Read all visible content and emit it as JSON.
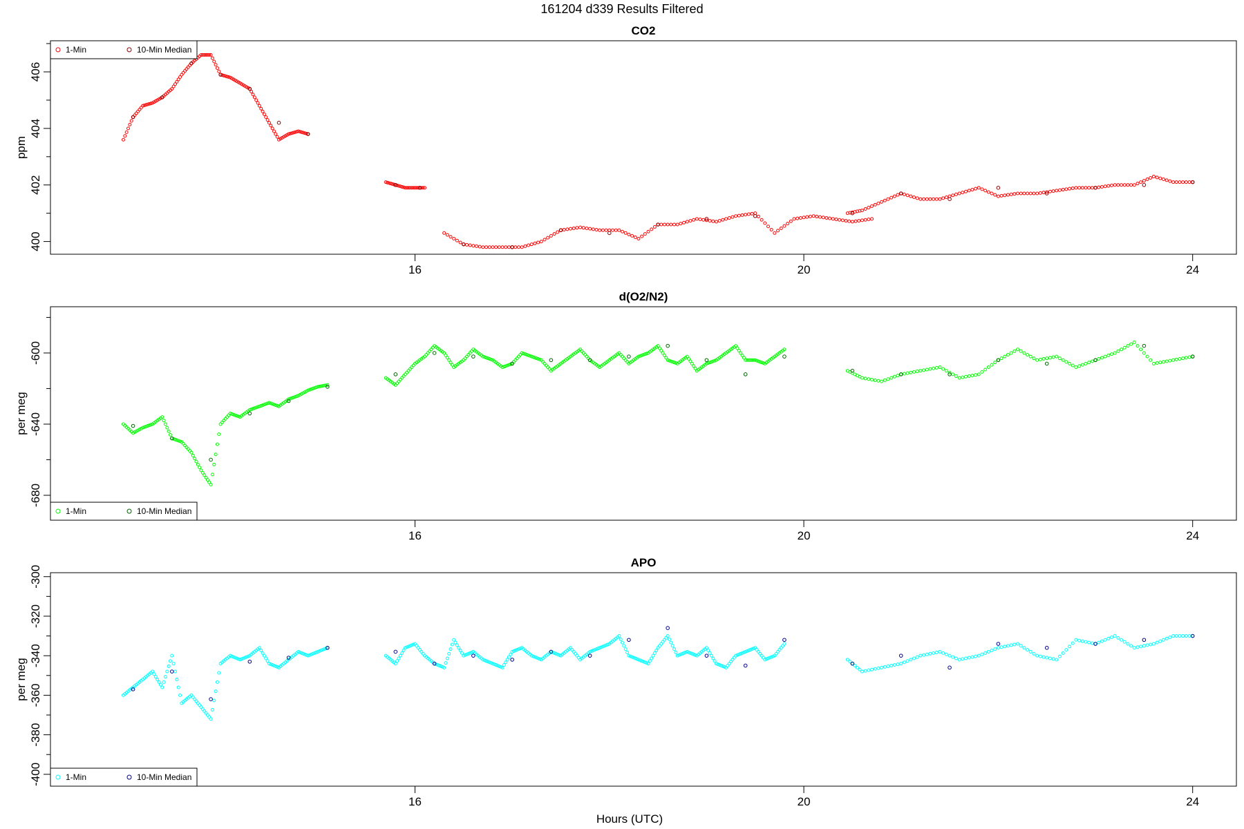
{
  "figure": {
    "title": "161204   d339   Results Filtered",
    "xlabel": "Hours (UTC)"
  },
  "legend": {
    "series1": "1-Min",
    "series2": "10-Min Median"
  },
  "chart_data": [
    {
      "type": "scatter",
      "title": "CO2",
      "xlabel": "",
      "ylabel": "ppm",
      "xlim": [
        12.25,
        24.45
      ],
      "ylim": [
        399.55,
        407.1
      ],
      "xticks": [
        16,
        20,
        24
      ],
      "yticks": [
        400,
        402,
        404,
        406
      ],
      "legend_position": "top-left",
      "colors": {
        "one_min": "#ff0000",
        "median": "#8b0000"
      },
      "series": [
        {
          "name": "1-Min",
          "segments": [
            {
              "x": [
                13.0,
                13.1,
                13.2,
                13.3,
                13.4,
                13.5,
                13.6,
                13.7,
                13.8,
                13.9,
                14.0,
                14.1,
                14.2,
                14.3,
                14.4,
                14.5,
                14.6,
                14.7,
                14.8,
                14.9,
                15.0,
                15.1,
                15.2
              ],
              "y": [
                403.6,
                404.4,
                404.8,
                404.9,
                405.1,
                405.4,
                405.9,
                406.3,
                406.6,
                406.6,
                405.9,
                405.8,
                405.6,
                405.4,
                404.8,
                404.2,
                403.6,
                403.8,
                403.9,
                403.8,
                null,
                null,
                null
              ]
            },
            {
              "x": [
                15.7,
                15.8,
                15.9,
                16.0,
                16.1
              ],
              "y": [
                402.1,
                402.0,
                401.9,
                401.9,
                401.9
              ]
            },
            {
              "x": [
                16.3,
                16.5,
                16.7,
                16.9,
                17.1,
                17.3,
                17.5,
                17.7,
                17.9,
                18.1,
                18.3,
                18.5,
                18.7,
                18.9,
                19.1,
                19.3,
                19.5,
                19.7,
                19.9,
                20.1,
                20.3,
                20.5,
                20.7,
                20.9,
                21.1,
                21.3
              ],
              "y": [
                400.3,
                399.9,
                399.8,
                399.8,
                399.8,
                400.0,
                400.4,
                400.5,
                400.4,
                400.4,
                400.1,
                400.6,
                400.6,
                400.8,
                400.7,
                400.9,
                401.0,
                400.3,
                400.8,
                400.9,
                400.8,
                400.7,
                400.8,
                null,
                null,
                null
              ]
            },
            {
              "x": [
                20.45,
                20.6,
                20.8,
                21.0,
                21.2,
                21.4,
                21.6,
                21.8,
                22.0,
                22.2,
                22.4,
                22.6,
                22.8,
                23.0,
                23.2,
                23.4,
                23.6,
                23.8,
                24.0
              ],
              "y": [
                401.0,
                401.1,
                401.4,
                401.7,
                401.5,
                401.5,
                401.7,
                401.9,
                401.6,
                401.7,
                401.7,
                401.8,
                401.9,
                401.9,
                402.0,
                402.0,
                402.3,
                402.1,
                402.1
              ]
            }
          ]
        },
        {
          "name": "10-Min Median",
          "segments": [
            {
              "x": [
                13.1,
                13.4,
                13.7,
                14.0,
                14.3,
                14.6,
                14.9
              ],
              "y": [
                404.4,
                405.1,
                406.3,
                405.9,
                405.4,
                404.2,
                403.8
              ]
            },
            {
              "x": [
                15.8,
                16.05
              ],
              "y": [
                402.0,
                401.9
              ]
            },
            {
              "x": [
                16.5,
                17.0,
                17.5,
                18.0,
                18.5,
                19.0,
                19.5
              ],
              "y": [
                399.9,
                399.8,
                400.4,
                400.3,
                400.6,
                400.8,
                400.9
              ]
            },
            {
              "x": [
                20.5,
                21.0,
                21.5,
                22.0,
                22.5,
                23.0,
                23.5,
                24.0
              ],
              "y": [
                401.0,
                401.7,
                401.5,
                401.9,
                401.7,
                401.9,
                402.0,
                402.1
              ]
            }
          ]
        }
      ]
    },
    {
      "type": "scatter",
      "title": "d(O2/N2)",
      "xlabel": "",
      "ylabel": "per meg",
      "xlim": [
        12.25,
        24.45
      ],
      "ylim": [
        -694,
        -574
      ],
      "xticks": [
        16,
        20,
        24
      ],
      "yticks": [
        -680,
        -640,
        -600
      ],
      "legend_position": "bottom-left",
      "colors": {
        "one_min": "#00ff00",
        "median": "#006400"
      },
      "series": [
        {
          "name": "1-Min",
          "segments": [
            {
              "x": [
                13.0,
                13.1,
                13.2,
                13.3,
                13.4,
                13.5,
                13.6,
                13.7,
                13.8,
                13.9,
                14.0,
                14.1,
                14.2,
                14.3,
                14.4,
                14.5,
                14.6,
                14.7,
                14.8,
                14.9,
                15.0,
                15.1
              ],
              "y": [
                -640,
                -645,
                -642,
                -640,
                -636,
                -648,
                -650,
                -656,
                -666,
                -674,
                -640,
                -634,
                -636,
                -632,
                -630,
                -628,
                -630,
                -626,
                -624,
                -621,
                -619,
                -618
              ]
            },
            {
              "x": [
                15.7,
                15.8,
                15.9,
                16.0,
                16.1,
                16.2,
                16.3,
                16.4,
                16.5,
                16.6,
                16.7,
                16.8,
                16.9,
                17.0,
                17.1,
                17.2,
                17.3,
                17.4,
                17.5,
                17.6,
                17.7,
                17.8,
                17.9,
                18.0,
                18.1,
                18.2,
                18.3,
                18.4,
                18.5,
                18.6,
                18.7,
                18.8,
                18.9,
                19.0,
                19.1,
                19.2,
                19.3,
                19.4,
                19.5,
                19.6,
                19.7,
                19.8
              ],
              "y": [
                -614,
                -618,
                -612,
                -606,
                -602,
                -596,
                -600,
                -608,
                -604,
                -598,
                -602,
                -604,
                -608,
                -606,
                -600,
                -602,
                -604,
                -610,
                -606,
                -602,
                -598,
                -604,
                -608,
                -604,
                -600,
                -606,
                -602,
                -600,
                -596,
                -604,
                -606,
                -602,
                -610,
                -606,
                -604,
                -600,
                -596,
                -604,
                -604,
                -606,
                -602,
                -598
              ]
            },
            {
              "x": [
                20.45,
                20.6,
                20.8,
                21.0,
                21.2,
                21.4,
                21.6,
                21.8,
                22.0,
                22.2,
                22.4,
                22.6,
                22.8,
                23.0,
                23.2,
                23.4,
                23.6,
                23.8,
                24.0
              ],
              "y": [
                -610,
                -614,
                -616,
                -612,
                -610,
                -608,
                -614,
                -612,
                -604,
                -598,
                -604,
                -602,
                -608,
                -604,
                -600,
                -594,
                -606,
                -604,
                -602
              ]
            }
          ]
        },
        {
          "name": "10-Min Median",
          "segments": [
            {
              "x": [
                13.1,
                13.5,
                13.9,
                14.3,
                14.7,
                15.1
              ],
              "y": [
                -641,
                -648,
                -660,
                -634,
                -627,
                -619
              ]
            },
            {
              "x": [
                15.8,
                16.2,
                16.6,
                17.0,
                17.4,
                17.8,
                18.2,
                18.6,
                19.0,
                19.4,
                19.8
              ],
              "y": [
                -612,
                -600,
                -602,
                -606,
                -604,
                -604,
                -602,
                -596,
                -604,
                -612,
                -602
              ]
            },
            {
              "x": [
                20.5,
                21.0,
                21.5,
                22.0,
                22.5,
                23.0,
                23.5,
                24.0
              ],
              "y": [
                -610,
                -612,
                -612,
                -604,
                -606,
                -604,
                -596,
                -602
              ]
            }
          ]
        }
      ]
    },
    {
      "type": "scatter",
      "title": "APO",
      "xlabel": "Hours (UTC)",
      "ylabel": "per meg",
      "xlim": [
        12.25,
        24.45
      ],
      "ylim": [
        -406,
        -298
      ],
      "xticks": [
        16,
        20,
        24
      ],
      "yticks": [
        -400,
        -380,
        -360,
        -340,
        -320,
        -300
      ],
      "legend_position": "bottom-left",
      "colors": {
        "one_min": "#00ffff",
        "median": "#00008b"
      },
      "series": [
        {
          "name": "1-Min",
          "segments": [
            {
              "x": [
                13.0,
                13.1,
                13.2,
                13.3,
                13.4,
                13.5,
                13.6,
                13.7,
                13.8,
                13.9,
                14.0,
                14.1,
                14.2,
                14.3,
                14.4,
                14.5,
                14.6,
                14.7,
                14.8,
                14.9,
                15.0,
                15.1
              ],
              "y": [
                -360,
                -356,
                -352,
                -348,
                -356,
                -340,
                -364,
                -360,
                -366,
                -372,
                -344,
                -340,
                -342,
                -340,
                -336,
                -344,
                -346,
                -342,
                -338,
                -340,
                -338,
                -336
              ]
            },
            {
              "x": [
                15.7,
                15.8,
                15.9,
                16.0,
                16.1,
                16.2,
                16.3,
                16.4,
                16.5,
                16.6,
                16.7,
                16.8,
                16.9,
                17.0,
                17.1,
                17.2,
                17.3,
                17.4,
                17.5,
                17.6,
                17.7,
                17.8,
                17.9,
                18.0,
                18.1,
                18.2,
                18.3,
                18.4,
                18.5,
                18.6,
                18.7,
                18.8,
                18.9,
                19.0,
                19.1,
                19.2,
                19.3,
                19.4,
                19.5,
                19.6,
                19.7,
                19.8
              ],
              "y": [
                -340,
                -344,
                -336,
                -334,
                -340,
                -344,
                -346,
                -332,
                -340,
                -338,
                -342,
                -344,
                -346,
                -338,
                -336,
                -340,
                -342,
                -338,
                -340,
                -336,
                -342,
                -338,
                -336,
                -334,
                -330,
                -340,
                -342,
                -344,
                -336,
                -330,
                -340,
                -338,
                -340,
                -336,
                -344,
                -346,
                -340,
                -338,
                -336,
                -342,
                -340,
                -334
              ]
            },
            {
              "x": [
                20.45,
                20.6,
                20.8,
                21.0,
                21.2,
                21.4,
                21.6,
                21.8,
                22.0,
                22.2,
                22.4,
                22.6,
                22.8,
                23.0,
                23.2,
                23.4,
                23.6,
                23.8,
                24.0
              ],
              "y": [
                -342,
                -348,
                -346,
                -344,
                -340,
                -338,
                -342,
                -340,
                -336,
                -334,
                -340,
                -342,
                -332,
                -334,
                -330,
                -336,
                -334,
                -330,
                -330
              ]
            }
          ]
        },
        {
          "name": "10-Min Median",
          "segments": [
            {
              "x": [
                13.1,
                13.5,
                13.9,
                14.3,
                14.7,
                15.1
              ],
              "y": [
                -357,
                -348,
                -362,
                -343,
                -341,
                -336
              ]
            },
            {
              "x": [
                15.8,
                16.2,
                16.6,
                17.0,
                17.4,
                17.8,
                18.2,
                18.6,
                19.0,
                19.4,
                19.8
              ],
              "y": [
                -338,
                -344,
                -340,
                -342,
                -338,
                -340,
                -332,
                -326,
                -340,
                -345,
                -332
              ]
            },
            {
              "x": [
                20.5,
                21.0,
                21.5,
                22.0,
                22.5,
                23.0,
                23.5,
                24.0
              ],
              "y": [
                -344,
                -340,
                -346,
                -334,
                -336,
                -334,
                -332,
                -330
              ]
            }
          ]
        }
      ]
    }
  ]
}
